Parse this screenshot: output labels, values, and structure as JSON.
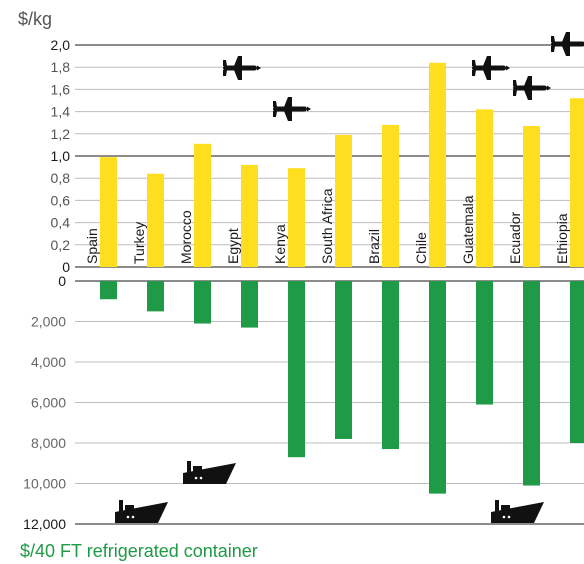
{
  "chart_data": [
    {
      "type": "bar",
      "ylabel": "$/kg",
      "ylim": [
        0,
        2.0
      ],
      "yticks": [
        "0",
        "0,2",
        "0,4",
        "0,6",
        "0,8",
        "1,0",
        "1,2",
        "1,4",
        "1,6",
        "1,8",
        "2,0"
      ],
      "categories": [
        "Spain",
        "Turkey",
        "Morocco",
        "Egypt",
        "Kenya",
        "South Africa",
        "Brazil",
        "Chile",
        "Guatemala",
        "Ecuador",
        "Ethiopia"
      ],
      "values": [
        0.99,
        0.84,
        1.11,
        0.92,
        0.89,
        1.19,
        1.28,
        1.84,
        1.42,
        1.27,
        1.52
      ],
      "color": "#ffdd1f",
      "air_freight_icons": [
        "Morocco",
        "South Africa",
        "Guatemala",
        "Ecuador",
        "Ethiopia"
      ]
    },
    {
      "type": "bar",
      "ylabel": "$/40 FT refrigerated container",
      "ylim": [
        0,
        12000
      ],
      "yticks": [
        "0",
        "2,000",
        "4,000",
        "6,000",
        "8,000",
        "10,000",
        "12,000"
      ],
      "categories": [
        "Spain",
        "Turkey",
        "Morocco",
        "Egypt",
        "Kenya",
        "South Africa",
        "Brazil",
        "Chile",
        "Guatemala",
        "Ecuador",
        "Ethiopia"
      ],
      "values": [
        900,
        1500,
        2100,
        2300,
        8700,
        7800,
        8300,
        10500,
        6100,
        10100,
        8000
      ],
      "color": "#1f9a46",
      "sea_freight_icons": [
        "Spain",
        "Egypt",
        "Ecuador"
      ]
    }
  ]
}
